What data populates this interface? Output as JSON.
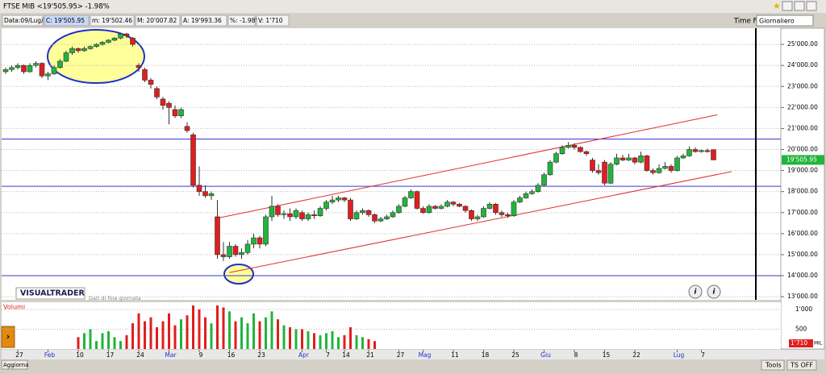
{
  "window": {
    "title": "FTSE MIB <19'505.95> -1.98%",
    "time_frame_label": "Time Frame",
    "time_frame": "Giornaliero",
    "brand": "VISUALTRADER",
    "brand_note": "Dati di fine giornata",
    "refresh": "Aggiorna",
    "tools": "Tools",
    "ts": "TS OFF"
  },
  "toolbar": {
    "fields": [
      "Data:09/Lug/20",
      "C: 19'505.95",
      "m: 19'502.46",
      "M: 20'007.82",
      "A: 19'993.36",
      "%: -1.98%",
      "V: 1'710"
    ]
  },
  "chart_data": {
    "type": "candlestick",
    "grid": true,
    "up_color": "#22b43c",
    "down_color": "#e01e1e",
    "categories": [
      null,
      null,
      "27",
      null,
      null,
      null,
      null,
      "Feb",
      null,
      null,
      null,
      null,
      "10",
      null,
      null,
      null,
      null,
      "17",
      null,
      null,
      null,
      null,
      "24",
      null,
      null,
      null,
      null,
      "Mar",
      null,
      null,
      null,
      null,
      "9",
      null,
      null,
      null,
      null,
      "16",
      null,
      null,
      null,
      null,
      "23",
      null,
      null,
      null,
      null,
      null,
      null,
      "Apr",
      null,
      null,
      null,
      "7",
      null,
      null,
      "14",
      null,
      null,
      null,
      "21",
      null,
      null,
      null,
      null,
      "27",
      null,
      null,
      null,
      "Mag",
      null,
      null,
      null,
      null,
      "11",
      null,
      null,
      null,
      null,
      "18",
      null,
      null,
      null,
      null,
      "25",
      null,
      null,
      null,
      null,
      "Giu",
      null,
      null,
      null,
      null,
      "8",
      null,
      null,
      null,
      null,
      "15",
      null,
      null,
      null,
      null,
      "22",
      null,
      null,
      null,
      null,
      null,
      null,
      "Lug",
      null,
      null,
      null,
      "7",
      null,
      null
    ],
    "ohlc": [
      [
        23700,
        23900,
        23600,
        23800
      ],
      [
        23800,
        24000,
        23700,
        23900
      ],
      [
        23900,
        24100,
        23800,
        24000
      ],
      [
        24000,
        24050,
        23600,
        23700
      ],
      [
        23700,
        24100,
        23650,
        24000
      ],
      [
        24000,
        24200,
        23900,
        24100
      ],
      [
        24100,
        24150,
        23400,
        23500
      ],
      [
        23500,
        23700,
        23300,
        23600
      ],
      [
        23600,
        24000,
        23550,
        23900
      ],
      [
        23900,
        24300,
        23850,
        24200
      ],
      [
        24200,
        24700,
        24150,
        24600
      ],
      [
        24600,
        24900,
        24500,
        24800
      ],
      [
        24800,
        24850,
        24600,
        24700
      ],
      [
        24700,
        24900,
        24650,
        24800
      ],
      [
        24800,
        24950,
        24750,
        24900
      ],
      [
        24900,
        25050,
        24850,
        25000
      ],
      [
        25000,
        25150,
        24950,
        25100
      ],
      [
        25100,
        25250,
        25050,
        25200
      ],
      [
        25200,
        25350,
        25150,
        25300
      ],
      [
        25300,
        25550,
        25250,
        25500
      ],
      [
        25500,
        25550,
        25300,
        25400
      ],
      [
        25300,
        25350,
        24900,
        25000
      ],
      [
        24000,
        24100,
        23700,
        23900
      ],
      [
        23800,
        23900,
        23200,
        23300
      ],
      [
        23300,
        23400,
        22900,
        23100
      ],
      [
        22900,
        23000,
        22400,
        22500
      ],
      [
        22400,
        22500,
        21900,
        22100
      ],
      [
        22200,
        22300,
        21200,
        22000
      ],
      [
        21900,
        22100,
        21500,
        21600
      ],
      [
        21600,
        22000,
        21500,
        21900
      ],
      [
        21100,
        21300,
        20800,
        20900
      ],
      [
        20700,
        20800,
        18200,
        18300
      ],
      [
        18300,
        19200,
        17800,
        18000
      ],
      [
        18000,
        18300,
        17700,
        17800
      ],
      [
        17800,
        18000,
        17600,
        17900
      ],
      [
        16800,
        17600,
        14800,
        15000
      ],
      [
        15000,
        15600,
        14700,
        14900
      ],
      [
        14900,
        15600,
        14800,
        15400
      ],
      [
        15400,
        15500,
        14900,
        15000
      ],
      [
        15000,
        15300,
        14800,
        15100
      ],
      [
        15100,
        15700,
        15000,
        15500
      ],
      [
        15500,
        16000,
        15300,
        15800
      ],
      [
        15800,
        15900,
        15300,
        15500
      ],
      [
        15500,
        16900,
        15400,
        16800
      ],
      [
        16800,
        17800,
        16600,
        17300
      ],
      [
        17300,
        17400,
        16800,
        16900
      ],
      [
        16900,
        17100,
        16700,
        16950
      ],
      [
        16950,
        17200,
        16600,
        16800
      ],
      [
        16800,
        17200,
        16700,
        17100
      ],
      [
        17000,
        17100,
        16600,
        16700
      ],
      [
        16700,
        17000,
        16600,
        16900
      ],
      [
        16900,
        17100,
        16700,
        16850
      ],
      [
        16850,
        17300,
        16800,
        17200
      ],
      [
        17200,
        17600,
        17100,
        17500
      ],
      [
        17500,
        17800,
        17400,
        17600
      ],
      [
        17600,
        17800,
        17500,
        17700
      ],
      [
        17700,
        17750,
        17500,
        17600
      ],
      [
        17600,
        17700,
        16600,
        16700
      ],
      [
        16700,
        17100,
        16650,
        17000
      ],
      [
        17000,
        17200,
        16900,
        17100
      ],
      [
        17100,
        17150,
        16800,
        16900
      ],
      [
        16900,
        16950,
        16500,
        16600
      ],
      [
        16600,
        16800,
        16550,
        16700
      ],
      [
        16700,
        16900,
        16650,
        16800
      ],
      [
        16800,
        17100,
        16750,
        17000
      ],
      [
        17000,
        17400,
        16950,
        17300
      ],
      [
        17300,
        17800,
        17250,
        17700
      ],
      [
        17700,
        18100,
        17650,
        18000
      ],
      [
        18000,
        18050,
        17150,
        17200
      ],
      [
        17200,
        17300,
        16950,
        17000
      ],
      [
        17000,
        17400,
        16950,
        17300
      ],
      [
        17300,
        17350,
        17150,
        17200
      ],
      [
        17200,
        17400,
        17150,
        17300
      ],
      [
        17300,
        17600,
        17250,
        17500
      ],
      [
        17500,
        17550,
        17300,
        17400
      ],
      [
        17400,
        17450,
        17250,
        17300
      ],
      [
        17300,
        17350,
        17000,
        17100
      ],
      [
        17100,
        17150,
        16600,
        16700
      ],
      [
        16700,
        16900,
        16600,
        16800
      ],
      [
        16800,
        17300,
        16750,
        17200
      ],
      [
        17200,
        17500,
        17150,
        17400
      ],
      [
        17400,
        17450,
        16900,
        17000
      ],
      [
        17000,
        17100,
        16800,
        16900
      ],
      [
        16900,
        17000,
        16750,
        16850
      ],
      [
        16850,
        17600,
        16800,
        17500
      ],
      [
        17500,
        17800,
        17450,
        17700
      ],
      [
        17700,
        18000,
        17650,
        17900
      ],
      [
        17900,
        18100,
        17850,
        18000
      ],
      [
        18000,
        18400,
        17950,
        18300
      ],
      [
        18300,
        18900,
        18250,
        18800
      ],
      [
        18800,
        19500,
        18750,
        19400
      ],
      [
        19400,
        19900,
        19350,
        19800
      ],
      [
        19800,
        20200,
        19750,
        20100
      ],
      [
        20100,
        20350,
        20050,
        20200
      ],
      [
        20200,
        20300,
        20000,
        20100
      ],
      [
        20100,
        20150,
        19850,
        19900
      ],
      [
        19900,
        19950,
        19700,
        19800
      ],
      [
        19500,
        19600,
        18900,
        19000
      ],
      [
        19000,
        19300,
        18800,
        18900
      ],
      [
        19400,
        19500,
        18300,
        18400
      ],
      [
        18400,
        19400,
        18350,
        19300
      ],
      [
        19300,
        19800,
        19250,
        19600
      ],
      [
        19600,
        19750,
        19450,
        19500
      ],
      [
        19500,
        19800,
        19450,
        19600
      ],
      [
        19600,
        19650,
        19300,
        19400
      ],
      [
        19400,
        19900,
        19350,
        19700
      ],
      [
        19700,
        19750,
        18950,
        19000
      ],
      [
        19000,
        19100,
        18800,
        18900
      ],
      [
        18900,
        19300,
        18850,
        19100
      ],
      [
        19100,
        19400,
        19050,
        19200
      ],
      [
        19200,
        19300,
        18900,
        19000
      ],
      [
        19000,
        19700,
        18950,
        19600
      ],
      [
        19600,
        19800,
        19550,
        19700
      ],
      [
        19700,
        20150,
        19650,
        20000
      ],
      [
        20000,
        20100,
        19850,
        19900
      ],
      [
        19900,
        20000,
        19850,
        19950
      ],
      [
        19950,
        20050,
        19850,
        19900
      ],
      [
        19993.36,
        20007.82,
        19502.46,
        19505.95
      ]
    ],
    "ylim": [
      12850,
      25770
    ],
    "yticks": [
      {
        "value": 13000,
        "label": "13'000.00"
      },
      {
        "value": 14000,
        "label": "14'000.00"
      },
      {
        "value": 15000,
        "label": "15'000.00"
      },
      {
        "value": 16000,
        "label": "16'000.00"
      },
      {
        "value": 17000,
        "label": "17'000.00"
      },
      {
        "value": 18000,
        "label": "18'000.00"
      },
      {
        "value": 19000,
        "label": "19'000.00"
      },
      {
        "value": 20000,
        "label": "20'000.00"
      },
      {
        "value": 21000,
        "label": "21'000.00"
      },
      {
        "value": 22000,
        "label": "22'000.00"
      },
      {
        "value": 23000,
        "label": "23'000.00"
      },
      {
        "value": 24000,
        "label": "24'000.00"
      },
      {
        "value": 25000,
        "label": "25'000.00"
      }
    ],
    "last_price": {
      "value": 19505.95,
      "label": "19'505.95"
    },
    "hlines": {
      "color": "#3a3ad0",
      "values": [
        20500,
        18250,
        14000
      ]
    },
    "trendlines": {
      "color": "#e03030",
      "lines": [
        [
          35.3,
          16750,
          117.6,
          21650
        ],
        [
          37,
          14150,
          120,
          18950
        ]
      ]
    },
    "volume": {
      "title": "Volumi",
      "values": [
        null,
        null,
        null,
        null,
        null,
        null,
        null,
        null,
        null,
        null,
        null,
        null,
        300,
        400,
        500,
        200,
        400,
        450,
        300,
        200,
        350,
        650,
        900,
        700,
        800,
        550,
        700,
        900,
        600,
        750,
        850,
        1100,
        1000,
        800,
        650,
        1100,
        1050,
        950,
        700,
        800,
        650,
        900,
        700,
        800,
        950,
        750,
        600,
        550,
        500,
        500,
        450,
        400,
        350,
        400,
        450,
        300,
        350,
        550,
        350,
        300,
        250,
        200,
        null,
        null,
        null,
        null,
        null,
        null,
        null,
        null,
        null,
        null,
        null,
        null,
        null,
        null,
        null,
        null,
        null,
        null,
        null,
        null,
        null,
        null,
        null,
        null,
        null,
        null,
        null,
        null,
        null,
        null,
        null,
        null,
        null,
        null,
        null,
        null,
        null,
        null,
        null,
        null,
        null,
        null,
        null,
        null,
        null,
        null,
        null,
        null,
        null,
        null,
        null,
        null,
        null,
        null
      ],
      "ylim": [
        0,
        1160
      ],
      "yticks": [
        500,
        {
          "value": 1000,
          "label": "1'000"
        }
      ],
      "last_label": "1'710",
      "unit": "MIL"
    }
  }
}
